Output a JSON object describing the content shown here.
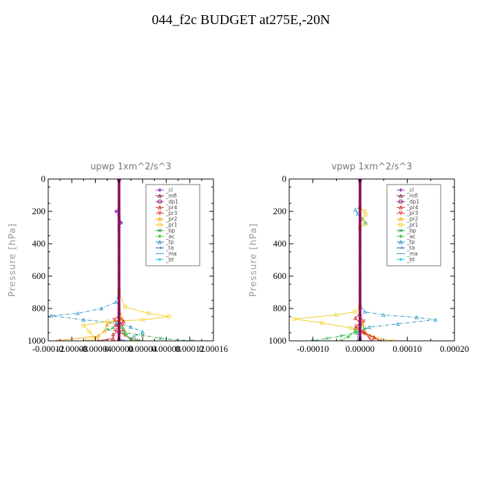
{
  "figure": {
    "title": "044_f2c  BUDGET at275E,-20N"
  },
  "legend": [
    {
      "name": "_cl",
      "color": "#9a4bc2",
      "marker": "diamond"
    },
    {
      "name": "_mfl",
      "color": "#7a1a5a",
      "marker": "triangle"
    },
    {
      "name": "_dp1",
      "color": "#8a1060",
      "marker": "square"
    },
    {
      "name": "_pr4",
      "color": "#d42020",
      "marker": "triangle"
    },
    {
      "name": "_pr3",
      "color": "#e03a3a",
      "marker": "triangle-down"
    },
    {
      "name": "_pr2",
      "color": "#f5a300",
      "marker": "triangle"
    },
    {
      "name": "_pr1",
      "color": "#f0d020",
      "marker": "square"
    },
    {
      "name": "_bp",
      "color": "#20a040",
      "marker": "cross"
    },
    {
      "name": "_ac",
      "color": "#50d050",
      "marker": "diamond"
    },
    {
      "name": "_tp",
      "color": "#2090c0",
      "marker": "triangle"
    },
    {
      "name": "_ta",
      "color": "#2050c0",
      "marker": "arrow"
    },
    {
      "name": "_ma",
      "color": "#20a0a0",
      "marker": "dash"
    },
    {
      "name": "_bt",
      "color": "#20d0e0",
      "marker": "star"
    }
  ],
  "chart_data": [
    {
      "type": "line",
      "title": "upwp   1xm^2/s^3",
      "ylabel": "Pressure [hPa]",
      "xlabel": "",
      "xlim": [
        -0.00012,
        0.00016
      ],
      "ylim": [
        1000,
        0
      ],
      "xticks": [
        -0.00012,
        -8e-05,
        -4e-05,
        0.0,
        4e-05,
        8e-05,
        0.00012,
        0.00016
      ],
      "xtick_labels": [
        "-0.00012",
        "-0.00008",
        "-0.00004",
        "0.00000",
        "0.00004",
        "0.00008",
        "0.00012",
        "0.00016"
      ],
      "yticks": [
        0,
        200,
        400,
        600,
        800,
        1000
      ],
      "ytick_labels": [
        "0",
        "200",
        "400",
        "600",
        "800",
        "1000"
      ],
      "series": [
        {
          "name": "_tp",
          "color": "#2090c0",
          "style": "dashdot",
          "points": [
            [
              0,
              0
            ],
            [
              0,
              700
            ],
            [
              -5e-06,
              760
            ],
            [
              -3e-05,
              800
            ],
            [
              -7e-05,
              830
            ],
            [
              -0.000115,
              845
            ],
            [
              -6e-05,
              870
            ],
            [
              -5e-06,
              890
            ],
            [
              2e-05,
              915
            ],
            [
              4e-05,
              945
            ],
            [
              2.5e-05,
              975
            ],
            [
              5e-06,
              1000
            ]
          ]
        },
        {
          "name": "_pr1",
          "color": "#f0d020",
          "style": "solid",
          "points": [
            [
              0,
              0
            ],
            [
              0,
              700
            ],
            [
              1e-05,
              790
            ],
            [
              5e-05,
              830
            ],
            [
              8.5e-05,
              850
            ],
            [
              4e-05,
              870
            ],
            [
              -2e-05,
              880
            ],
            [
              -6e-05,
              905
            ],
            [
              -5e-05,
              945
            ],
            [
              -4e-05,
              985
            ],
            [
              -5.5e-05,
              1000
            ]
          ]
        },
        {
          "name": "_pr2",
          "color": "#f5a300",
          "style": "solid",
          "points": [
            [
              0,
              0
            ],
            [
              0,
              800
            ],
            [
              5e-06,
              860
            ],
            [
              -2e-05,
              900
            ],
            [
              -2.5e-05,
              940
            ],
            [
              -3.5e-05,
              970
            ],
            [
              -0.000105,
              1000
            ]
          ]
        },
        {
          "name": "_bp",
          "color": "#20a040",
          "style": "dashdot",
          "points": [
            [
              0,
              0
            ],
            [
              0,
              900
            ],
            [
              -1e-05,
              920
            ],
            [
              -2e-05,
              930
            ],
            [
              1e-05,
              950
            ],
            [
              4e-05,
              965
            ],
            [
              7e-05,
              985
            ],
            [
              0.000125,
              1000
            ]
          ]
        },
        {
          "name": "_pr4",
          "color": "#d42020",
          "style": "solid",
          "points": [
            [
              0,
              0
            ],
            [
              0,
              850
            ],
            [
              8e-06,
              880
            ],
            [
              -6e-06,
              905
            ],
            [
              8e-06,
              930
            ],
            [
              -1e-05,
              960
            ],
            [
              -1e-05,
              985
            ],
            [
              -3.5e-05,
              1000
            ]
          ]
        },
        {
          "name": "_pr3",
          "color": "#e03a3a",
          "style": "solid",
          "points": [
            [
              0,
              0
            ],
            [
              0,
              840
            ],
            [
              -8e-06,
              870
            ],
            [
              6e-06,
              900
            ],
            [
              -6e-06,
              935
            ],
            [
              1e-05,
              965
            ],
            [
              2e-05,
              990
            ],
            [
              3e-05,
              1000
            ]
          ]
        },
        {
          "name": "_ac",
          "color": "#50d050",
          "style": "solid",
          "points": [
            [
              0,
              0
            ],
            [
              0,
              880
            ],
            [
              6e-06,
              920
            ],
            [
              1.2e-05,
              960
            ],
            [
              2e-05,
              990
            ],
            [
              3.5e-05,
              1000
            ]
          ]
        },
        {
          "name": "_cl",
          "color": "#9a4bc2",
          "style": "solid",
          "points": [
            [
              0,
              0
            ],
            [
              0,
              180
            ],
            [
              -5e-06,
              200
            ],
            [
              0,
              230
            ],
            [
              4e-06,
              270
            ],
            [
              0,
              300
            ],
            [
              0,
              1000
            ]
          ]
        },
        {
          "name": "_mfl",
          "color": "#7a1a5a",
          "style": "solid",
          "points": [
            [
              0,
              0
            ],
            [
              0,
              1000
            ]
          ]
        },
        {
          "name": "_dp1",
          "color": "#8a1060",
          "style": "solid",
          "points": [
            [
              0,
              0
            ],
            [
              0,
              1000
            ]
          ]
        }
      ]
    },
    {
      "type": "line",
      "title": "vpwp   1xm^2/s^3",
      "ylabel": "Pressure [hPa]",
      "xlabel": "",
      "xlim": [
        -0.00015,
        0.0002
      ],
      "ylim": [
        1000,
        0
      ],
      "xticks": [
        -0.0001,
        0.0,
        0.0001,
        0.0002
      ],
      "xtick_labels": [
        "-0.00010",
        "0.00000",
        "0.00010",
        "0.00020"
      ],
      "yticks": [
        0,
        200,
        400,
        600,
        800,
        1000
      ],
      "ytick_labels": [
        "0",
        "200",
        "400",
        "600",
        "800",
        "1000"
      ],
      "series": [
        {
          "name": "_tp",
          "color": "#2090c0",
          "style": "dashdot",
          "points": [
            [
              0,
              0
            ],
            [
              0,
              170
            ],
            [
              -1e-05,
              190
            ],
            [
              -5e-06,
              215
            ],
            [
              5e-06,
              245
            ],
            [
              1.2e-05,
              270
            ],
            [
              0,
              300
            ],
            [
              0,
              780
            ],
            [
              1e-05,
              820
            ],
            [
              5e-05,
              840
            ],
            [
              0.00012,
              855
            ],
            [
              0.00016,
              870
            ],
            [
              8e-05,
              895
            ],
            [
              2e-05,
              915
            ],
            [
              -5e-06,
              950
            ],
            [
              -5e-06,
              1000
            ]
          ]
        },
        {
          "name": "_pr1",
          "color": "#f0d020",
          "style": "solid",
          "points": [
            [
              0,
              0
            ],
            [
              0,
              180
            ],
            [
              1e-05,
              200
            ],
            [
              1.2e-05,
              220
            ],
            [
              5e-06,
              250
            ],
            [
              1e-05,
              280
            ],
            [
              0,
              300
            ],
            [
              0,
              790
            ],
            [
              -1e-05,
              820
            ],
            [
              -5e-05,
              840
            ],
            [
              -0.00014,
              865
            ],
            [
              -8e-05,
              890
            ],
            [
              -2e-05,
              920
            ],
            [
              1e-05,
              950
            ],
            [
              2e-05,
              970
            ],
            [
              7e-05,
              1000
            ]
          ]
        },
        {
          "name": "_pr2",
          "color": "#f5a300",
          "style": "solid",
          "points": [
            [
              0,
              0
            ],
            [
              0,
              850
            ],
            [
              6e-06,
              900
            ],
            [
              1e-05,
              950
            ],
            [
              3e-05,
              975
            ],
            [
              4e-05,
              1000
            ]
          ]
        },
        {
          "name": "_bp",
          "color": "#20a040",
          "style": "dashdot",
          "points": [
            [
              0,
              0
            ],
            [
              0,
              900
            ],
            [
              1e-05,
              925
            ],
            [
              -1e-05,
              950
            ],
            [
              -4e-05,
              970
            ],
            [
              -7e-05,
              985
            ],
            [
              -0.0001,
              1000
            ]
          ]
        },
        {
          "name": "_pr4",
          "color": "#d42020",
          "style": "solid",
          "points": [
            [
              0,
              0
            ],
            [
              0,
              830
            ],
            [
              -1e-05,
              860
            ],
            [
              0,
              890
            ],
            [
              -1e-05,
              920
            ],
            [
              1e-05,
              950
            ],
            [
              3e-05,
              980
            ],
            [
              4.5e-05,
              1000
            ]
          ]
        },
        {
          "name": "_pr3",
          "color": "#e03a3a",
          "style": "solid",
          "points": [
            [
              0,
              0
            ],
            [
              0,
              850
            ],
            [
              8e-06,
              880
            ],
            [
              -8e-06,
              910
            ],
            [
              5e-06,
              945
            ],
            [
              2e-05,
              980
            ],
            [
              2.5e-05,
              1000
            ]
          ]
        },
        {
          "name": "_ac",
          "color": "#50d050",
          "style": "solid",
          "points": [
            [
              0,
              0
            ],
            [
              0,
              900
            ],
            [
              -1e-05,
              940
            ],
            [
              -2.5e-05,
              975
            ],
            [
              -4e-05,
              1000
            ]
          ]
        },
        {
          "name": "_cl",
          "color": "#9a4bc2",
          "style": "solid",
          "points": [
            [
              0,
              0
            ],
            [
              0,
              1000
            ]
          ]
        },
        {
          "name": "_mfl",
          "color": "#7a1a5a",
          "style": "solid",
          "points": [
            [
              0,
              0
            ],
            [
              0,
              1000
            ]
          ]
        },
        {
          "name": "_dp1",
          "color": "#8a1060",
          "style": "solid",
          "points": [
            [
              0,
              0
            ],
            [
              0,
              1000
            ]
          ]
        }
      ]
    }
  ]
}
